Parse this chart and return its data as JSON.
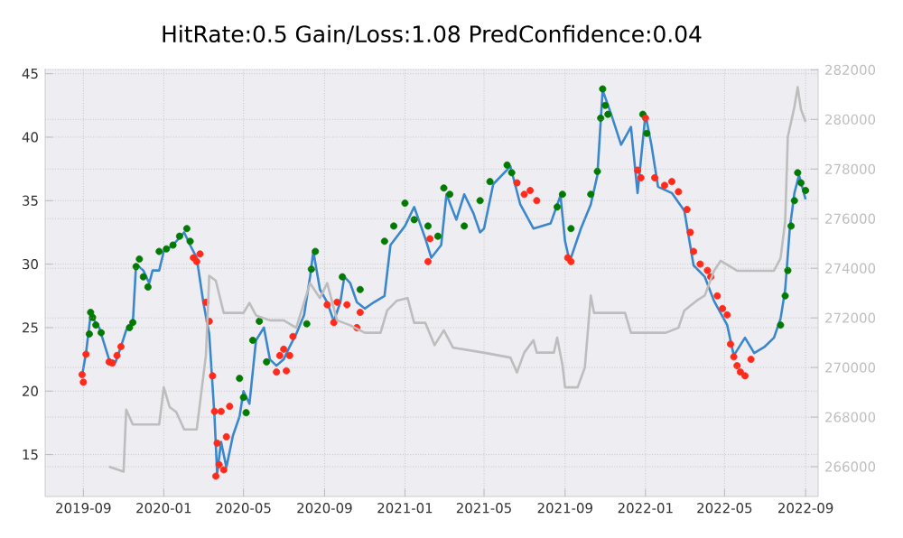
{
  "chart_data": {
    "type": "line",
    "title": "HitRate:0.5 Gain/Loss:1.08 PredConfidence:0.04",
    "xlim": [
      "2019-07-05",
      "2022-09-20"
    ],
    "xticks": [
      {
        "value": "2019-09-01",
        "label": "2019-09"
      },
      {
        "value": "2020-01-01",
        "label": "2020-01"
      },
      {
        "value": "2020-05-01",
        "label": "2020-05"
      },
      {
        "value": "2020-09-01",
        "label": "2020-09"
      },
      {
        "value": "2021-01-01",
        "label": "2021-01"
      },
      {
        "value": "2021-05-01",
        "label": "2021-05"
      },
      {
        "value": "2021-09-01",
        "label": "2021-09"
      },
      {
        "value": "2022-01-01",
        "label": "2022-01"
      },
      {
        "value": "2022-05-01",
        "label": "2022-05"
      },
      {
        "value": "2022-09-01",
        "label": "2022-09"
      }
    ],
    "ylim": [
      11.7,
      45.4
    ],
    "yticks": [
      15,
      20,
      25,
      30,
      35,
      40,
      45
    ],
    "y2lim": [
      264800,
      282050
    ],
    "y2ticks": [
      266000,
      268000,
      270000,
      272000,
      274000,
      276000,
      278000,
      280000,
      282000
    ],
    "grid": true,
    "series": [
      {
        "color": "#3a87cc",
        "x": [
          "2019-08-30",
          "2019-09-05",
          "2019-09-12",
          "2019-09-25",
          "2019-10-10",
          "2019-10-20",
          "2019-10-28",
          "2019-11-05",
          "2019-11-15",
          "2019-11-20",
          "2019-12-01",
          "2019-12-10",
          "2019-12-15",
          "2019-12-25",
          "2020-01-01",
          "2020-01-15",
          "2020-02-01",
          "2020-02-10",
          "2020-02-20",
          "2020-03-01",
          "2020-03-10",
          "2020-03-18",
          "2020-03-22",
          "2020-03-28",
          "2020-04-05",
          "2020-04-15",
          "2020-04-25",
          "2020-05-01",
          "2020-05-10",
          "2020-05-20",
          "2020-06-01",
          "2020-06-10",
          "2020-06-20",
          "2020-07-01",
          "2020-07-10",
          "2020-07-20",
          "2020-08-01",
          "2020-08-10",
          "2020-08-15",
          "2020-08-25",
          "2020-09-05",
          "2020-09-15",
          "2020-09-25",
          "2020-10-01",
          "2020-10-10",
          "2020-10-20",
          "2020-11-01",
          "2020-11-15",
          "2020-12-01",
          "2020-12-10",
          "2021-01-01",
          "2021-01-15",
          "2021-02-01",
          "2021-02-10",
          "2021-02-25",
          "2021-03-05",
          "2021-03-20",
          "2021-04-01",
          "2021-04-15",
          "2021-04-25",
          "2021-05-01",
          "2021-05-15",
          "2021-06-10",
          "2021-06-25",
          "2021-07-15",
          "2021-08-10",
          "2021-08-25",
          "2021-09-01",
          "2021-09-08",
          "2021-09-25",
          "2021-10-10",
          "2021-10-20",
          "2021-10-28",
          "2021-11-10",
          "2021-11-25",
          "2021-12-10",
          "2021-12-20",
          "2022-01-01",
          "2022-01-10",
          "2022-01-20",
          "2022-02-10",
          "2022-03-01",
          "2022-03-15",
          "2022-04-01",
          "2022-04-15",
          "2022-05-05",
          "2022-05-15",
          "2022-06-01",
          "2022-06-15",
          "2022-07-01",
          "2022-07-15",
          "2022-07-25",
          "2022-08-01",
          "2022-08-08",
          "2022-08-15",
          "2022-08-22",
          "2022-09-01"
        ],
        "values": [
          21.2,
          23,
          26,
          25,
          22.5,
          22.3,
          23.5,
          24.8,
          25.3,
          30,
          29.5,
          28.5,
          29.5,
          29.5,
          31,
          31.5,
          32.5,
          31.5,
          30.5,
          27,
          24.5,
          18,
          13.5,
          16,
          14,
          16.5,
          18,
          20,
          19,
          24,
          25,
          22.5,
          22,
          22.5,
          23.5,
          24.5,
          26,
          29,
          31,
          28,
          27,
          25.5,
          27,
          29,
          28.5,
          27,
          26.5,
          27,
          27.5,
          31.5,
          33,
          34.5,
          32,
          30.5,
          31.5,
          35.5,
          33.5,
          35.5,
          34,
          32.5,
          32.8,
          36.3,
          37.7,
          34.7,
          32.8,
          33.2,
          35.4,
          31.8,
          30.2,
          32.8,
          34.7,
          37,
          43.7,
          41.8,
          39.4,
          40.8,
          35.6,
          41.8,
          39.4,
          36.1,
          35.6,
          34.2,
          29.9,
          29,
          27.1,
          25.2,
          22.8,
          24.2,
          23,
          23.5,
          24.2,
          25.7,
          28,
          32.8,
          35.6,
          37,
          35.1
        ]
      },
      {
        "type": "scatter",
        "marker": "circle",
        "color": "#007a00",
        "x": [
          "2019-09-10",
          "2019-09-12",
          "2019-09-15",
          "2019-09-20",
          "2019-09-28",
          "2019-11-10",
          "2019-11-15",
          "2019-11-20",
          "2019-11-25",
          "2019-12-01",
          "2019-12-08",
          "2019-12-25",
          "2020-01-05",
          "2020-01-15",
          "2020-01-25",
          "2020-02-05",
          "2020-02-10",
          "2020-04-25",
          "2020-05-01",
          "2020-05-05",
          "2020-05-15",
          "2020-05-25",
          "2020-06-05",
          "2020-08-05",
          "2020-08-12",
          "2020-08-18",
          "2020-09-28",
          "2020-10-25",
          "2020-12-01",
          "2020-12-15",
          "2021-01-01",
          "2021-01-15",
          "2021-02-05",
          "2021-02-20",
          "2021-03-01",
          "2021-03-10",
          "2021-04-01",
          "2021-04-25",
          "2021-05-10",
          "2021-06-05",
          "2021-06-12",
          "2021-08-20",
          "2021-08-28",
          "2021-09-10",
          "2021-10-10",
          "2021-10-20",
          "2021-10-25",
          "2021-10-28",
          "2021-11-01",
          "2021-11-05",
          "2021-12-28",
          "2022-01-03",
          "2022-07-25",
          "2022-08-01",
          "2022-08-05",
          "2022-08-10",
          "2022-08-15",
          "2022-08-20",
          "2022-08-25",
          "2022-09-01"
        ],
        "values": [
          24.5,
          26.2,
          25.8,
          25.2,
          24.6,
          25,
          25.4,
          29.8,
          30.4,
          29,
          28.2,
          31,
          31.2,
          31.5,
          32.2,
          32.8,
          31.8,
          21,
          19.5,
          18.3,
          24,
          25.5,
          22.3,
          25.3,
          29.6,
          31,
          29,
          28,
          31.8,
          33,
          34.8,
          33.5,
          33,
          32.2,
          36,
          35.5,
          33,
          35,
          36.5,
          37.8,
          37.2,
          34.5,
          35.5,
          32.8,
          35.5,
          37.3,
          41.5,
          43.8,
          42.5,
          41.8,
          41.8,
          40.3,
          25.2,
          27.5,
          29.5,
          33,
          35,
          37.2,
          36.4,
          35.8
        ]
      },
      {
        "type": "scatter",
        "marker": "circle",
        "color": "#ff2a1a",
        "x": [
          "2019-08-30",
          "2019-09-01",
          "2019-09-05",
          "2019-10-10",
          "2019-10-15",
          "2019-10-22",
          "2019-10-28",
          "2020-02-15",
          "2020-02-20",
          "2020-02-25",
          "2020-03-05",
          "2020-03-10",
          "2020-03-15",
          "2020-03-18",
          "2020-03-20",
          "2020-03-22",
          "2020-03-25",
          "2020-03-28",
          "2020-04-01",
          "2020-04-05",
          "2020-04-10",
          "2020-06-20",
          "2020-06-25",
          "2020-07-01",
          "2020-07-05",
          "2020-07-10",
          "2020-07-15",
          "2020-09-05",
          "2020-09-15",
          "2020-09-20",
          "2020-10-05",
          "2020-10-20",
          "2020-10-25",
          "2021-02-05",
          "2021-02-08",
          "2021-06-20",
          "2021-07-01",
          "2021-07-10",
          "2021-07-20",
          "2021-09-05",
          "2021-09-10",
          "2021-12-20",
          "2021-12-25",
          "2022-01-01",
          "2022-01-15",
          "2022-01-30",
          "2022-02-10",
          "2022-02-20",
          "2022-03-05",
          "2022-03-10",
          "2022-03-15",
          "2022-03-25",
          "2022-04-05",
          "2022-04-10",
          "2022-04-20",
          "2022-04-28",
          "2022-05-05",
          "2022-05-10",
          "2022-05-15",
          "2022-05-20",
          "2022-05-25",
          "2022-06-01",
          "2022-06-10"
        ],
        "values": [
          21.3,
          20.7,
          22.9,
          22.3,
          22.2,
          22.8,
          23.5,
          30.5,
          30.2,
          30.8,
          27,
          25.5,
          21.2,
          18.4,
          13.3,
          15.9,
          14.2,
          18.4,
          13.8,
          16.4,
          18.8,
          21.5,
          22.8,
          23.3,
          21.6,
          22.8,
          24.3,
          26.8,
          25.4,
          27,
          26.8,
          25,
          26.2,
          30.2,
          32,
          36.4,
          35.5,
          35.8,
          35,
          30.5,
          30.2,
          37.4,
          36.8,
          41.5,
          36.8,
          36.2,
          36.5,
          35.7,
          34.3,
          32.5,
          31,
          30,
          29.5,
          29,
          27.5,
          26.5,
          26,
          23.7,
          22.7,
          22,
          21.5,
          21.2,
          22.5
        ]
      },
      {
        "type": "line",
        "axis": "y2",
        "color": "#bdbdbd",
        "x": [
          "2019-10-10",
          "2019-11-01",
          "2019-11-05",
          "2019-11-15",
          "2019-12-25",
          "2020-01-01",
          "2020-01-10",
          "2020-01-20",
          "2020-02-01",
          "2020-02-20",
          "2020-03-05",
          "2020-03-10",
          "2020-03-20",
          "2020-04-01",
          "2020-05-01",
          "2020-05-10",
          "2020-05-20",
          "2020-06-10",
          "2020-07-01",
          "2020-07-20",
          "2020-08-10",
          "2020-08-25",
          "2020-09-05",
          "2020-09-20",
          "2020-10-10",
          "2020-11-01",
          "2020-11-25",
          "2020-12-05",
          "2020-12-20",
          "2021-01-05",
          "2021-01-15",
          "2021-02-01",
          "2021-02-15",
          "2021-03-01",
          "2021-03-15",
          "2021-04-30",
          "2021-06-10",
          "2021-06-20",
          "2021-07-01",
          "2021-07-15",
          "2021-07-20",
          "2021-08-15",
          "2021-08-20",
          "2021-08-28",
          "2021-09-01",
          "2021-09-20",
          "2021-10-01",
          "2021-10-10",
          "2021-10-15",
          "2021-12-01",
          "2021-12-10",
          "2022-01-10",
          "2022-02-01",
          "2022-02-20",
          "2022-03-01",
          "2022-03-20",
          "2022-04-01",
          "2022-04-15",
          "2022-04-25",
          "2022-05-20",
          "2022-07-15",
          "2022-07-25",
          "2022-08-01",
          "2022-08-05",
          "2022-08-15",
          "2022-08-20",
          "2022-08-25",
          "2022-09-01"
        ],
        "values": [
          266000,
          265800,
          268300,
          267700,
          267700,
          269200,
          268400,
          268200,
          267500,
          267500,
          270500,
          273700,
          273500,
          272200,
          272200,
          272600,
          272100,
          271900,
          271900,
          271600,
          273400,
          272800,
          273400,
          271900,
          271700,
          271400,
          271400,
          272300,
          272700,
          272800,
          271800,
          271800,
          270900,
          271500,
          270800,
          270600,
          270400,
          269800,
          270600,
          271100,
          270600,
          270600,
          271200,
          270100,
          269200,
          269200,
          270000,
          272900,
          272200,
          272200,
          271400,
          271400,
          271400,
          271600,
          272300,
          272700,
          272900,
          273900,
          274300,
          273900,
          273900,
          274400,
          275900,
          279300,
          280500,
          281300,
          280400,
          279900
        ]
      }
    ]
  }
}
